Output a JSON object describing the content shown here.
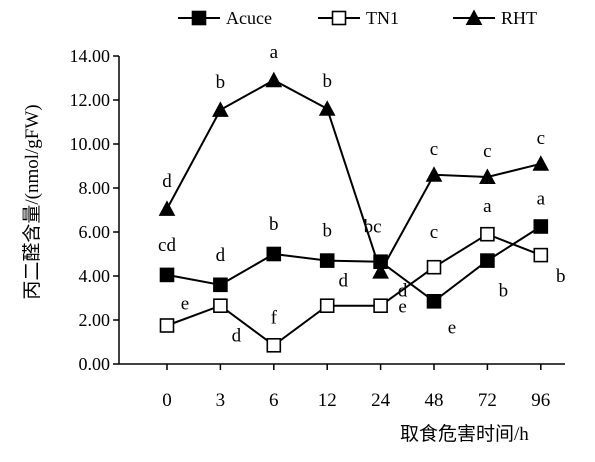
{
  "chart_data": {
    "type": "line",
    "categories": [
      "0",
      "3",
      "6",
      "12",
      "24",
      "48",
      "72",
      "96"
    ],
    "xlabel": "取食危害时间/h",
    "ylabel": "丙二醛含量/(nmol/gFW)",
    "ylim": [
      0,
      14
    ],
    "y_ticks": [
      "0.00",
      "2.00",
      "4.00",
      "6.00",
      "8.00",
      "10.00",
      "12.00",
      "14.00"
    ],
    "grid": false,
    "legend_position": "top",
    "series": [
      {
        "name": "Acuce",
        "marker": "square-filled",
        "color": "#000000",
        "values": [
          4.05,
          3.6,
          5.0,
          4.7,
          4.65,
          2.85,
          4.7,
          6.25
        ],
        "labels": [
          "cd",
          "d",
          "b",
          "b",
          "bc",
          "e",
          "b",
          "a"
        ]
      },
      {
        "name": "TN1",
        "marker": "square-open",
        "color": "#000000",
        "values": [
          1.75,
          2.65,
          0.85,
          2.65,
          2.65,
          4.4,
          5.9,
          4.95
        ],
        "labels": [
          "e",
          "d",
          "f",
          "d",
          "d",
          "c",
          "a",
          "b"
        ]
      },
      {
        "name": "RHT",
        "marker": "triangle-filled",
        "color": "#000000",
        "values": [
          7.05,
          11.55,
          12.9,
          11.6,
          4.2,
          8.6,
          8.5,
          9.1
        ],
        "labels": [
          "d",
          "b",
          "a",
          "b",
          "e",
          "c",
          "c",
          "c"
        ]
      }
    ]
  }
}
